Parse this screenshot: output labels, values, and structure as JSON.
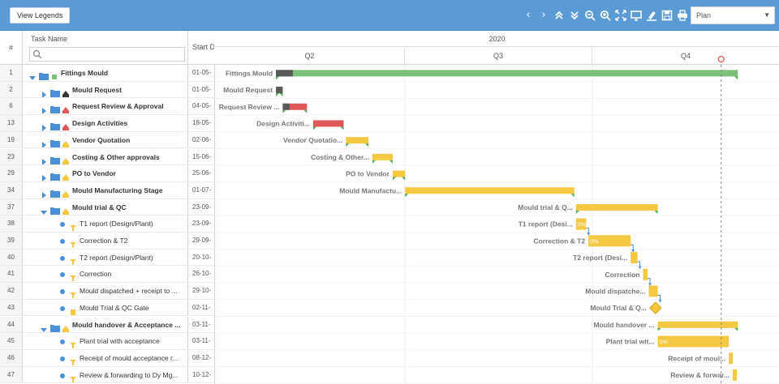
{
  "toolbar": {
    "legend_label": "View Legends",
    "view_selected": "Plan",
    "icons": [
      "chevron-left-icon",
      "chevron-right-icon",
      "collapse-up-icon",
      "expand-down-icon",
      "zoom-out-icon",
      "zoom-in-icon",
      "fit-screen-icon",
      "monitor-icon",
      "highlight-icon",
      "save-icon",
      "print-icon"
    ]
  },
  "grid": {
    "col_num": "#",
    "col_name": "Task Name",
    "col_start": "Start Date"
  },
  "timeline": {
    "year": "2020",
    "quarters": [
      "Q2",
      "Q3",
      "Q4"
    ]
  },
  "colors": {
    "summary_green": "#7cc17a",
    "done_gray": "#5a5a5a",
    "red": "#e05757",
    "yellow": "#f5c842",
    "accent": "#5b9bd5"
  },
  "rows": [
    {
      "num": "1",
      "name": "Fittings Mould",
      "start": "01-05-",
      "level": 0,
      "type": "folder",
      "open": true,
      "bold": true,
      "mark": "green",
      "bar": {
        "from": 0.108,
        "to": 0.927,
        "color": "green",
        "done": 0.03
      },
      "label": "Fittings Mould"
    },
    {
      "num": "2",
      "name": "Mould Request",
      "start": "01-05-",
      "level": 1,
      "type": "folder",
      "open": false,
      "bold": true,
      "mark": "black",
      "bar": {
        "from": 0.108,
        "to": 0.12,
        "color": "gray"
      },
      "label": "Mould Request"
    },
    {
      "num": "6",
      "name": "Request Review & Approval",
      "start": "04-05-",
      "level": 1,
      "type": "folder",
      "open": false,
      "bold": true,
      "mark": "red",
      "bar": {
        "from": 0.12,
        "to": 0.163,
        "color": "red",
        "done": 0.012
      },
      "label": "Request Review ..."
    },
    {
      "num": "13",
      "name": "Design Activities",
      "start": "18-05-",
      "level": 1,
      "type": "folder",
      "open": false,
      "bold": true,
      "mark": "red",
      "bar": {
        "from": 0.174,
        "to": 0.228,
        "color": "red"
      },
      "label": "Design Activiti..."
    },
    {
      "num": "19",
      "name": "Vendor Quotation",
      "start": "02-06-",
      "level": 1,
      "type": "folder",
      "open": false,
      "bold": true,
      "mark": "yellow",
      "bar": {
        "from": 0.232,
        "to": 0.272,
        "color": "yellow"
      },
      "label": "Vendor Quotatio..."
    },
    {
      "num": "23",
      "name": "Costing & Other approvals",
      "start": "15-06-",
      "level": 1,
      "type": "folder",
      "open": false,
      "bold": true,
      "mark": "yellow",
      "bar": {
        "from": 0.279,
        "to": 0.315,
        "color": "yellow"
      },
      "label": "Costing & Other..."
    },
    {
      "num": "29",
      "name": "PO to Vendor",
      "start": "25-06-",
      "level": 1,
      "type": "folder",
      "open": false,
      "bold": true,
      "mark": "yellow",
      "bar": {
        "from": 0.315,
        "to": 0.337,
        "color": "yellow"
      },
      "label": "PO to Vendor"
    },
    {
      "num": "34",
      "name": "Mould Manufacturing Stage",
      "start": "01-07-",
      "level": 1,
      "type": "folder",
      "open": false,
      "bold": true,
      "mark": "yellow",
      "bar": {
        "from": 0.337,
        "to": 0.637,
        "color": "yellow"
      },
      "label": "Mould Manufactu..."
    },
    {
      "num": "37",
      "name": "Mould trial & QC",
      "start": "23-09-",
      "level": 1,
      "type": "folder",
      "open": true,
      "bold": true,
      "mark": "yellow",
      "bar": {
        "from": 0.64,
        "to": 0.785,
        "color": "yellow"
      },
      "label": "Mould trial & Q..."
    },
    {
      "num": "38",
      "name": "T1 report (Design/Plant)",
      "start": "23-09-",
      "level": 2,
      "type": "task",
      "bold": false,
      "mark": "yellow",
      "bar": {
        "from": 0.64,
        "to": 0.658,
        "color": "yellow",
        "pct": "0%"
      },
      "label": "T1 report (Desi..."
    },
    {
      "num": "39",
      "name": "Correction & T2",
      "start": "29-09-",
      "level": 2,
      "type": "task",
      "bold": false,
      "mark": "yellow",
      "bar": {
        "from": 0.662,
        "to": 0.737,
        "color": "yellow",
        "pct": "0%"
      },
      "label": "Correction & T2"
    },
    {
      "num": "40",
      "name": "T2 report (Design/Plant)",
      "start": "20-10-",
      "level": 2,
      "type": "task",
      "bold": false,
      "mark": "yellow",
      "bar": {
        "from": 0.737,
        "to": 0.749,
        "color": "yellow"
      },
      "label": "T2 report (Desi..."
    },
    {
      "num": "41",
      "name": "Correction",
      "start": "26-10-",
      "level": 2,
      "type": "task",
      "bold": false,
      "mark": "yellow",
      "bar": {
        "from": 0.759,
        "to": 0.767,
        "color": "yellow"
      },
      "label": "Correction"
    },
    {
      "num": "42",
      "name": "Mould dispatched + receipt to ...",
      "start": "29-10-",
      "level": 2,
      "type": "task",
      "bold": false,
      "mark": "yellow",
      "bar": {
        "from": 0.769,
        "to": 0.785,
        "color": "yellow"
      },
      "label": "Mould dispatche..."
    },
    {
      "num": "43",
      "name": "Mould Trial & QC Gate",
      "start": "02-11-",
      "level": 2,
      "type": "task",
      "bold": false,
      "mark": "yellowsq",
      "milestone": 0.781,
      "label": "Mould Trial & Q..."
    },
    {
      "num": "44",
      "name": "Mould handover & Acceptance ...",
      "start": "03-11-",
      "level": 1,
      "type": "folder",
      "open": true,
      "bold": true,
      "mark": "yellow",
      "bar": {
        "from": 0.785,
        "to": 0.927,
        "color": "yellow"
      },
      "label": "Mould handover ..."
    },
    {
      "num": "45",
      "name": "Plant trial with acceptance",
      "start": "03-11-",
      "level": 2,
      "type": "task",
      "bold": false,
      "mark": "yellow",
      "bar": {
        "from": 0.785,
        "to": 0.911,
        "color": "yellow",
        "pct": "0%"
      },
      "label": "Plant trial wit..."
    },
    {
      "num": "46",
      "name": "Receipt of mould acceptance r...",
      "start": "08-12-",
      "level": 2,
      "type": "task",
      "bold": false,
      "mark": "yellow",
      "bar": {
        "from": 0.911,
        "to": 0.918,
        "color": "yellow"
      },
      "label": "Receipt of moul..."
    },
    {
      "num": "47",
      "name": "Review & forwarding to Dy Mg...",
      "start": "10-12-",
      "level": 2,
      "type": "task",
      "bold": false,
      "mark": "yellow",
      "bar": {
        "from": 0.918,
        "to": 0.925,
        "color": "yellow"
      },
      "label": "Review & forwar..."
    }
  ],
  "today_marker": 0.637
}
